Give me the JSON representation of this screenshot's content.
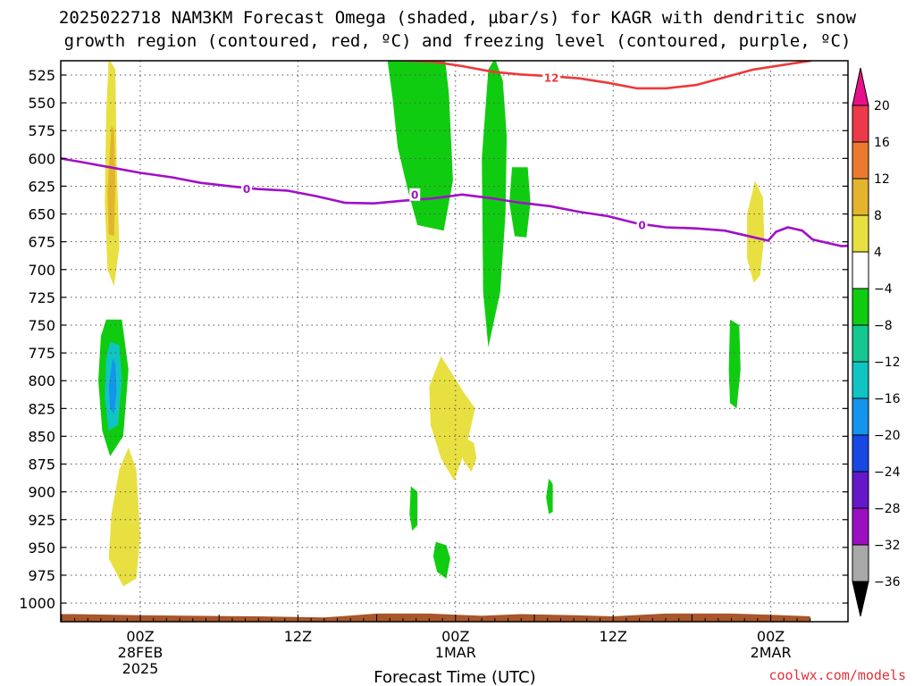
{
  "chart_data": {
    "type": "heatmap",
    "title_line1": "2025022718 NAM3KM Forecast Omega (shaded, µbar/s) for KAGR with dendritic snow",
    "title_line2": "growth region (contoured, red, ºC) and freezing level (contoured, purple, ºC)",
    "xlabel": "Forecast Time (UTC)",
    "credit": "coolwx.com/models",
    "x_unit": "hours from 00Z 28FEB2025",
    "xlim": [
      -9,
      51
    ],
    "x_ticks": [
      {
        "x": 0,
        "lines": [
          "00Z",
          "28FEB",
          "2025"
        ]
      },
      {
        "x": 12,
        "lines": [
          "12Z"
        ]
      },
      {
        "x": 24,
        "lines": [
          "00Z",
          "1MAR"
        ]
      },
      {
        "x": 36,
        "lines": [
          "12Z"
        ]
      },
      {
        "x": 48,
        "lines": [
          "00Z",
          "2MAR"
        ]
      }
    ],
    "ylabel": "",
    "y_unit": "hPa",
    "ylim": [
      1015,
      510
    ],
    "y_ticks": [
      525,
      550,
      575,
      600,
      625,
      650,
      675,
      700,
      725,
      750,
      775,
      800,
      825,
      850,
      875,
      900,
      925,
      950,
      975,
      1000
    ],
    "grid": true,
    "colorbar": {
      "unit": "µbar/s",
      "labels": [
        "20",
        "16",
        "12",
        "8",
        "4",
        "−4",
        "−8",
        "−12",
        "−16",
        "−20",
        "−24",
        "−28",
        "−32",
        "−36"
      ],
      "bins": [
        {
          "range": [
            16,
            20
          ],
          "color": "#ec3a4a"
        },
        {
          "range": [
            12,
            16
          ],
          "color": "#ec7a2e"
        },
        {
          "range": [
            8,
            12
          ],
          "color": "#e4b42e"
        },
        {
          "range": [
            4,
            8
          ],
          "color": "#e8e040"
        },
        {
          "range": [
            -4,
            4
          ],
          "color": "#ffffff"
        },
        {
          "range": [
            -8,
            -4
          ],
          "color": "#10cc10"
        },
        {
          "range": [
            -12,
            -8
          ],
          "color": "#14c890"
        },
        {
          "range": [
            -16,
            -12
          ],
          "color": "#10c4c4"
        },
        {
          "range": [
            -20,
            -16
          ],
          "color": "#1494ec"
        },
        {
          "range": [
            -24,
            -20
          ],
          "color": "#1848e4"
        },
        {
          "range": [
            -28,
            -24
          ],
          "color": "#6418c8"
        },
        {
          "range": [
            -32,
            -28
          ],
          "color": "#9a10c0"
        },
        {
          "range": [
            -36,
            -32
          ],
          "color": "#a8a8a8"
        }
      ],
      "top_arrow_color": "#e8108a",
      "bottom_arrow_color": "#000000"
    },
    "freezing_level": {
      "name": "0",
      "color": "#a010c8",
      "label": "0",
      "label_points": [
        [
          8.1,
          627.5
        ],
        [
          20.9,
          632.5
        ],
        [
          38.2,
          660
        ]
      ],
      "points": [
        [
          -9,
          600.5
        ],
        [
          -7.9,
          597.5
        ],
        [
          -6.8,
          598.5
        ],
        [
          -4.6,
          603
        ],
        [
          -2.3,
          608
        ],
        [
          0,
          613
        ],
        [
          2.4,
          617
        ],
        [
          4.6,
          622
        ],
        [
          6.8,
          625
        ],
        [
          8.9,
          627.5
        ],
        [
          11.2,
          629
        ],
        [
          13.4,
          634
        ],
        [
          15.6,
          640
        ],
        [
          17.8,
          640.5
        ],
        [
          20.1,
          638
        ],
        [
          22.3,
          636
        ],
        [
          24.5,
          632.5
        ],
        [
          26.8,
          636
        ],
        [
          29,
          640
        ],
        [
          31.2,
          643
        ],
        [
          33.4,
          648
        ],
        [
          35.6,
          652
        ],
        [
          37.8,
          658.5
        ],
        [
          40,
          662
        ],
        [
          42.3,
          663
        ],
        [
          44.5,
          665
        ],
        [
          46.7,
          671
        ],
        [
          47.8,
          674
        ],
        [
          48.4,
          666
        ],
        [
          49.3,
          662
        ],
        [
          50.4,
          665
        ],
        [
          51.2,
          673
        ],
        [
          53.4,
          679
        ],
        [
          55.6,
          677.5
        ],
        [
          57.8,
          680
        ],
        [
          60,
          679
        ]
      ]
    },
    "dendritic_isotherm": {
      "name": "12",
      "color": "#ec3a3a",
      "label": "12",
      "label_points": [
        [
          31.3,
          527.5
        ]
      ],
      "points": [
        [
          15.6,
          508
        ],
        [
          17.8,
          510
        ],
        [
          20.1,
          512
        ],
        [
          22.3,
          513
        ],
        [
          24.5,
          517
        ],
        [
          26.8,
          522
        ],
        [
          29,
          524.5
        ],
        [
          31.2,
          526
        ],
        [
          33.4,
          528
        ],
        [
          35.6,
          532
        ],
        [
          37.8,
          537
        ],
        [
          40,
          537
        ],
        [
          42.3,
          534
        ],
        [
          44.5,
          527
        ],
        [
          46.7,
          520
        ],
        [
          48.9,
          516
        ],
        [
          51.1,
          512
        ]
      ]
    },
    "omega_regions": [
      {
        "name": "green-1",
        "color": "#10cc10",
        "points": [
          [
            18.8,
            510
          ],
          [
            23.2,
            510
          ],
          [
            23.5,
            542
          ],
          [
            23.8,
            620
          ],
          [
            23.1,
            665
          ],
          [
            21.1,
            660
          ],
          [
            20.4,
            630
          ],
          [
            19.6,
            590
          ],
          [
            19.2,
            545
          ]
        ]
      },
      {
        "name": "green-2",
        "color": "#10cc10",
        "points": [
          [
            27.0,
            510
          ],
          [
            27.6,
            530
          ],
          [
            27.9,
            580
          ],
          [
            27.8,
            650
          ],
          [
            27.4,
            720
          ],
          [
            26.5,
            770
          ],
          [
            26.1,
            720
          ],
          [
            26.0,
            600
          ],
          [
            26.5,
            520
          ]
        ]
      },
      {
        "name": "green-3",
        "color": "#10cc10",
        "points": [
          [
            28.3,
            608
          ],
          [
            29.5,
            608
          ],
          [
            29.7,
            640
          ],
          [
            29.4,
            671
          ],
          [
            28.5,
            670
          ],
          [
            28.1,
            640
          ]
        ]
      },
      {
        "name": "green-4",
        "color": "#10cc10",
        "points": [
          [
            44.9,
            745
          ],
          [
            45.6,
            750
          ],
          [
            45.7,
            790
          ],
          [
            45.4,
            825
          ],
          [
            44.9,
            820
          ],
          [
            44.8,
            790
          ]
        ]
      },
      {
        "name": "green-5",
        "color": "#10cc10",
        "points": [
          [
            -9.8,
            795
          ],
          [
            -9.2,
            800
          ],
          [
            -8.9,
            840
          ],
          [
            -9.3,
            920
          ],
          [
            -9.6,
            953
          ],
          [
            -10.1,
            900
          ],
          [
            -10.2,
            840
          ]
        ]
      },
      {
        "name": "green-6",
        "color": "#10cc10",
        "points": [
          [
            22.5,
            945
          ],
          [
            23.3,
            948
          ],
          [
            23.6,
            960
          ],
          [
            23.3,
            978
          ],
          [
            22.6,
            972
          ],
          [
            22.3,
            958
          ]
        ]
      },
      {
        "name": "green-7",
        "color": "#10cc10",
        "points": [
          [
            20.6,
            895
          ],
          [
            21.1,
            900
          ],
          [
            21.1,
            930
          ],
          [
            20.7,
            935
          ],
          [
            20.5,
            920
          ]
        ]
      },
      {
        "name": "green-8",
        "color": "#10cc10",
        "points": [
          [
            31.1,
            888
          ],
          [
            31.4,
            893
          ],
          [
            31.4,
            918
          ],
          [
            31.1,
            920
          ],
          [
            30.9,
            905
          ]
        ]
      },
      {
        "name": "green-9",
        "color": "#10cc10",
        "points": [
          [
            -2.6,
            745
          ],
          [
            -1.4,
            745
          ],
          [
            -0.9,
            790
          ],
          [
            -1.3,
            850
          ],
          [
            -2.3,
            868
          ],
          [
            -2.9,
            845
          ],
          [
            -3.2,
            800
          ],
          [
            -3.0,
            760
          ]
        ]
      },
      {
        "name": "cyan-core",
        "color": "#10c4c4",
        "points": [
          [
            -2.3,
            765
          ],
          [
            -1.6,
            768
          ],
          [
            -1.4,
            800
          ],
          [
            -1.7,
            840
          ],
          [
            -2.4,
            845
          ],
          [
            -2.7,
            815
          ],
          [
            -2.6,
            780
          ]
        ]
      },
      {
        "name": "blue-core",
        "color": "#1494ec",
        "points": [
          [
            -2.1,
            780
          ],
          [
            -1.9,
            785
          ],
          [
            -1.8,
            810
          ],
          [
            -2.0,
            830
          ],
          [
            -2.3,
            825
          ],
          [
            -2.4,
            805
          ]
        ]
      },
      {
        "name": "yellow-1",
        "color": "#e8e040",
        "points": [
          [
            -2.4,
            510
          ],
          [
            -1.9,
            520
          ],
          [
            -1.8,
            600
          ],
          [
            -1.6,
            680
          ],
          [
            -2.0,
            715
          ],
          [
            -2.5,
            700
          ],
          [
            -2.7,
            640
          ],
          [
            -2.6,
            560
          ]
        ]
      },
      {
        "name": "orange-core",
        "color": "#e4b42e",
        "points": [
          [
            -2.2,
            570
          ],
          [
            -2.0,
            575
          ],
          [
            -1.9,
            620
          ],
          [
            -2.0,
            670
          ],
          [
            -2.4,
            668
          ],
          [
            -2.5,
            630
          ]
        ]
      },
      {
        "name": "yellow-2",
        "color": "#e8e040",
        "points": [
          [
            22.9,
            778
          ],
          [
            24.6,
            810
          ],
          [
            25.5,
            825
          ],
          [
            24.8,
            860
          ],
          [
            23.9,
            890
          ],
          [
            22.9,
            870
          ],
          [
            22.1,
            840
          ],
          [
            22.0,
            805
          ]
        ]
      },
      {
        "name": "yellow-3",
        "color": "#e8e040",
        "points": [
          [
            24.5,
            850
          ],
          [
            25.4,
            856
          ],
          [
            25.6,
            870
          ],
          [
            25.2,
            882
          ],
          [
            24.6,
            872
          ],
          [
            24.4,
            860
          ]
        ]
      },
      {
        "name": "yellow-4",
        "color": "#e8e040",
        "points": [
          [
            46.8,
            620
          ],
          [
            47.4,
            635
          ],
          [
            47.5,
            670
          ],
          [
            47.2,
            705
          ],
          [
            46.7,
            712
          ],
          [
            46.2,
            690
          ],
          [
            46.2,
            650
          ]
        ]
      },
      {
        "name": "yellow-5",
        "color": "#e8e040",
        "points": [
          [
            -8.4,
            830
          ],
          [
            -8.0,
            838
          ],
          [
            -8.0,
            870
          ],
          [
            -8.2,
            900
          ],
          [
            -8.6,
            885
          ],
          [
            -8.6,
            850
          ]
        ]
      },
      {
        "name": "yellow-6",
        "color": "#e8e040",
        "points": [
          [
            -0.9,
            860
          ],
          [
            -0.3,
            880
          ],
          [
            0.0,
            940
          ],
          [
            -0.3,
            978
          ],
          [
            -1.3,
            985
          ],
          [
            -2.4,
            960
          ],
          [
            -2.2,
            920
          ],
          [
            -1.6,
            880
          ]
        ]
      }
    ],
    "terrain": {
      "name": "terrain",
      "color": "#a8562a",
      "points": [
        [
          -9,
          1010
        ],
        [
          -5,
          1010
        ],
        [
          0,
          1011
        ],
        [
          4,
          1011.5
        ],
        [
          9,
          1012
        ],
        [
          14,
          1013
        ],
        [
          18,
          1009.5
        ],
        [
          22,
          1009.5
        ],
        [
          26,
          1011.5
        ],
        [
          29,
          1010
        ],
        [
          33,
          1011
        ],
        [
          36,
          1012
        ],
        [
          40,
          1009.5
        ],
        [
          45,
          1009.5
        ],
        [
          48,
          1010.5
        ],
        [
          51,
          1012
        ]
      ]
    }
  }
}
